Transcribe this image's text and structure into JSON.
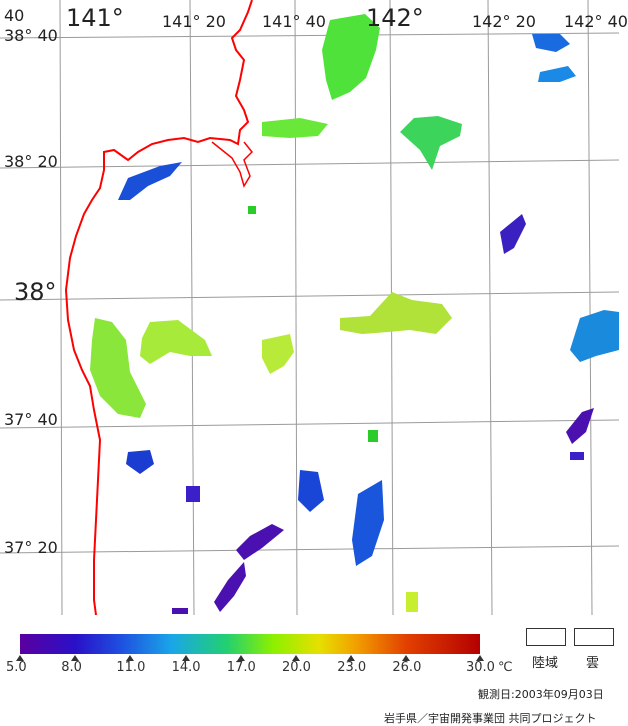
{
  "map": {
    "lon_labels": [
      "141°",
      "141° 20",
      "141° 40",
      "142°",
      "142° 20",
      "142° 40"
    ],
    "lat_labels": [
      "38° 40",
      "38° 20",
      "38°",
      "37° 40",
      "37° 20"
    ],
    "coast_color": "#ff0000",
    "grid_color": "#9a9a9a"
  },
  "colorbar": {
    "ticks": [
      "5.0",
      "8.0",
      "11.0",
      "14.0",
      "17.0",
      "20.0",
      "23.0",
      "26.0",
      "30.0"
    ],
    "unit": "℃",
    "range": [
      5.0,
      30.0
    ]
  },
  "legend": {
    "land_label": "陸域",
    "cloud_label": "雲"
  },
  "observation": {
    "label": "観測日:",
    "date": "2003年09月03日"
  },
  "credit": "岩手県／宇宙開発事業団 共同プロジェクト"
}
